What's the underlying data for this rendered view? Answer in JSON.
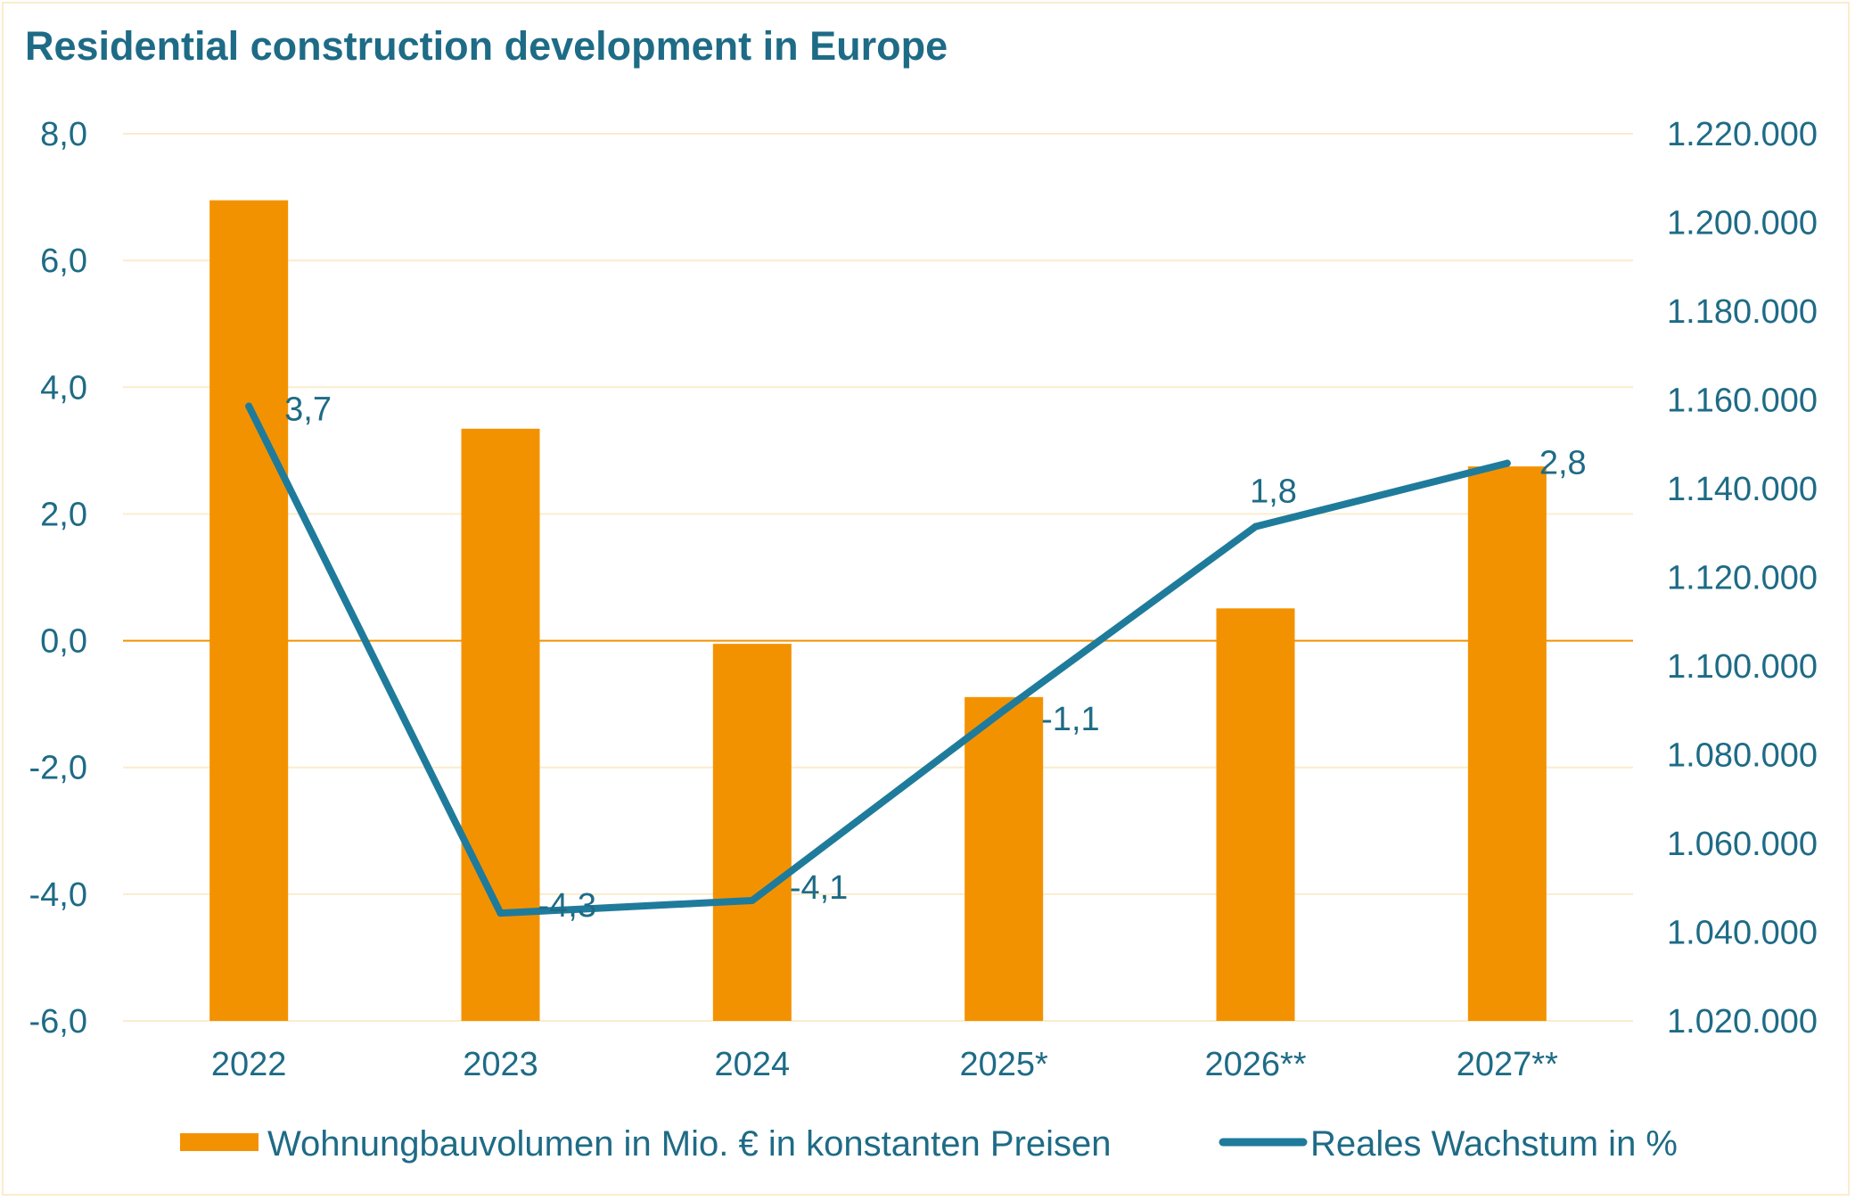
{
  "page": {
    "title": "Residential construction development in Europe"
  },
  "chart_data": {
    "type": "bar",
    "categories": [
      "2022",
      "2023",
      "2024",
      "2025*",
      "2026**",
      "2027**"
    ],
    "series": [
      {
        "name": "Wohnungbauvolumen in Mio. € in konstanten Preisen",
        "type": "bar",
        "axis": "right",
        "values": [
          1205000,
          1153500,
          1105000,
          1093000,
          1113000,
          1145000
        ],
        "color": "#f39200"
      },
      {
        "name": "Reales Wachstum in %",
        "type": "line",
        "axis": "left",
        "values": [
          3.7,
          -4.3,
          -4.1,
          -1.1,
          1.8,
          2.8
        ],
        "labels": [
          "3,7",
          "-4,3",
          "-4,1",
          "-1,1",
          "1,8",
          "2,8"
        ],
        "color": "#1f7b9b"
      }
    ],
    "y_left": {
      "lim": [
        -6,
        8
      ],
      "ticks": [
        8,
        6,
        4,
        2,
        0,
        -2,
        -4,
        -6
      ],
      "tick_labels": [
        "8,0",
        "6,0",
        "4,0",
        "2,0",
        "0,0",
        "-2,0",
        "-4,0",
        "-6,0"
      ]
    },
    "y_right": {
      "lim": [
        1020000,
        1220000
      ],
      "ticks": [
        1220000,
        1200000,
        1180000,
        1160000,
        1140000,
        1120000,
        1100000,
        1080000,
        1060000,
        1040000,
        1020000
      ],
      "tick_labels": [
        "1.220.000",
        "1.200.000",
        "1.180.000",
        "1.160.000",
        "1.140.000",
        "1.120.000",
        "1.100.000",
        "1.080.000",
        "1.060.000",
        "1.040.000",
        "1.020.000"
      ]
    },
    "grid": true,
    "legend": "bottom",
    "colors": {
      "text": "#1e6b86",
      "grid": "#fbeccd",
      "zero_line": "#f39200",
      "border": "#fbeccd"
    }
  }
}
